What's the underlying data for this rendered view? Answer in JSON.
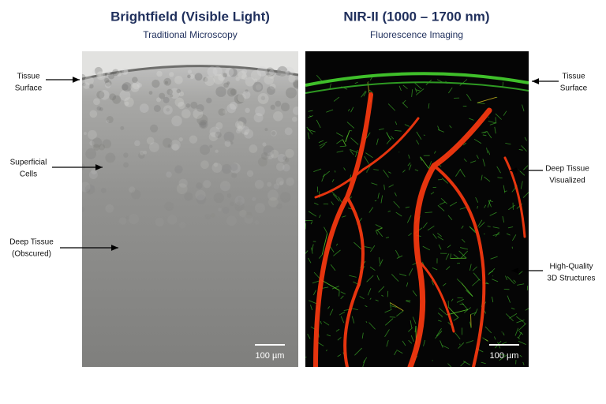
{
  "left": {
    "title": "Brightfield (Visible Light)",
    "subtitle": "Traditional Microscopy",
    "scale_label": "100 µm",
    "annotations": [
      {
        "lines": [
          "Tissue",
          "Surface"
        ]
      },
      {
        "lines": [
          "Superficial",
          "Cells"
        ]
      },
      {
        "lines": [
          "Deep Tissue",
          "(Obscured)"
        ]
      }
    ]
  },
  "right": {
    "title": "NIR-II (1000 – 1700 nm)",
    "subtitle": "Fluorescence Imaging",
    "scale_label": "100 µm",
    "annotations": [
      {
        "lines": [
          "Tissue",
          "Surface"
        ]
      },
      {
        "lines": [
          "Deep Tissue",
          "Visualized"
        ]
      },
      {
        "lines": [
          "High-Quality",
          "3D Structures"
        ]
      }
    ]
  }
}
